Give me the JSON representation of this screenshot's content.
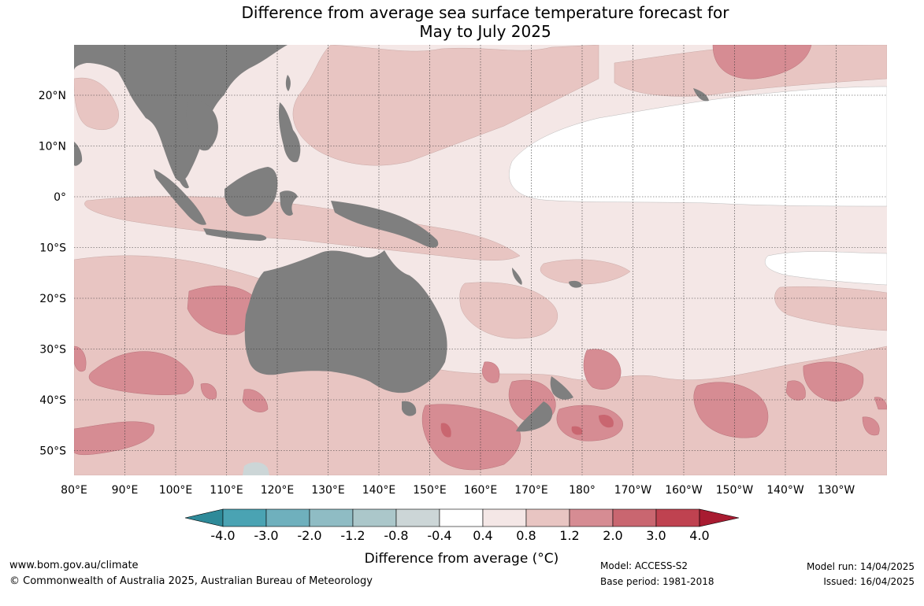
{
  "title": {
    "line1": "Difference from average sea surface temperature forecast for",
    "line2": "May to July 2025"
  },
  "map": {
    "lat_labels": [
      "20°N",
      "10°N",
      "0°",
      "10°S",
      "20°S",
      "30°S",
      "40°S",
      "50°S"
    ],
    "lon_labels": [
      "80°E",
      "90°E",
      "100°E",
      "110°E",
      "120°E",
      "130°E",
      "140°E",
      "150°E",
      "160°E",
      "170°E",
      "180°",
      "170°W",
      "160°W",
      "150°W",
      "140°W",
      "130°W"
    ],
    "land_color": "#7f7f7f"
  },
  "legend": {
    "tick_labels": [
      "-4.0",
      "-3.0",
      "-2.0",
      "-1.2",
      "-0.8",
      "-0.4",
      "0.4",
      "0.8",
      "1.2",
      "2.0",
      "3.0",
      "4.0"
    ],
    "colors": [
      "#2e8a99",
      "#4aa3b3",
      "#6fb0bd",
      "#8fbcc4",
      "#abc7ca",
      "#ccd6d7",
      "#ffffff",
      "#f4e7e6",
      "#e8c5c2",
      "#d68c93",
      "#c96670",
      "#bf4250",
      "#a81b31"
    ],
    "label": "Difference from average (°C)"
  },
  "footer": {
    "website": "www.bom.gov.au/climate",
    "copyright": "© Commonwealth of Australia 2025, Australian Bureau of Meteorology",
    "model": "Model: ACCESS-S2",
    "base_period": "Base period: 1981-2018",
    "model_run": "Model run: 14/04/2025",
    "issued": "Issued: 16/04/2025"
  }
}
